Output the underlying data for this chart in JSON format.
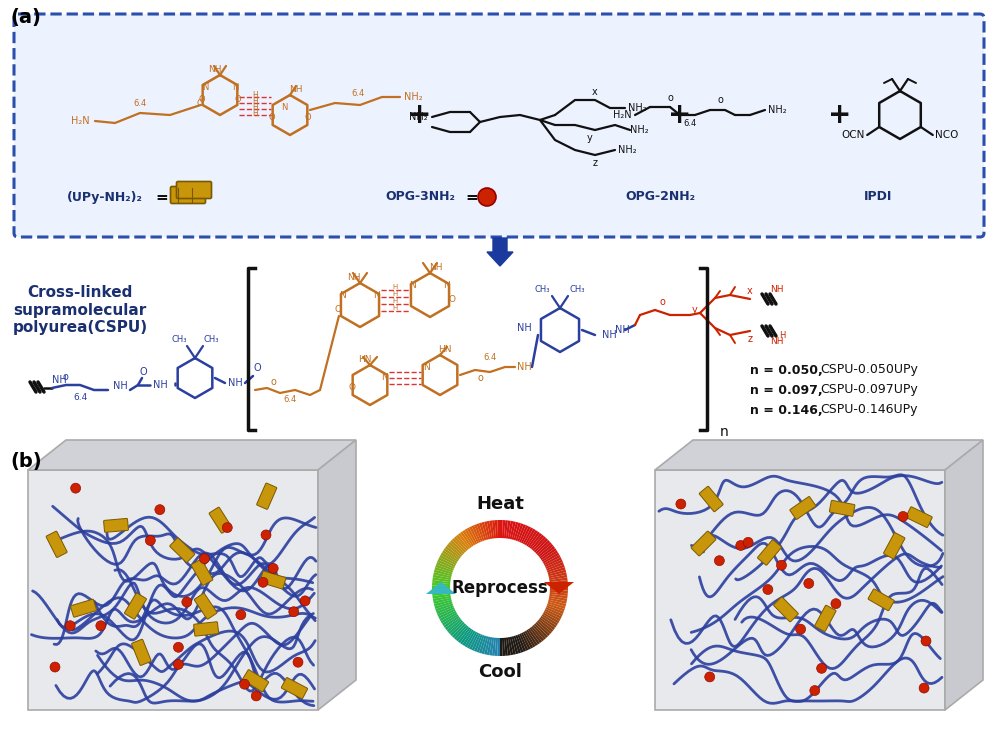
{
  "bg_color": "#ffffff",
  "box_color": "#2B4EAF",
  "box_fill": "#EDF2FF",
  "arrow_color": "#1A3A9E",
  "label_a": "(a)",
  "label_b": "(b)",
  "upy_label": "(UPy-NH₂)₂",
  "opg3_label": "OPG-3NH₂",
  "opg2_label": "OPG-2NH₂",
  "ipdi_label": "IPDI",
  "cspu_label": "Cross-linked\nsupramolecular\npolyurea(CSPU)",
  "n_labels": [
    "n = 0.050, CSPU-0.050UPy",
    "n = 0.097, CSPU-0.097UPy",
    "n = 0.146, CSPU-0.146UPy"
  ],
  "heat_label": "Heat",
  "reprocess_label": "Reprocess",
  "cool_label": "Cool",
  "upy_color": "#C8960A",
  "opg3_dot_color": "#CC2200",
  "blue_chain": "#2B3F9E",
  "orange_chain": "#C07020",
  "red_chain": "#CC2200",
  "dark_blue": "#1A3070",
  "black": "#111111",
  "panel_b_box": "#E5E7EC"
}
